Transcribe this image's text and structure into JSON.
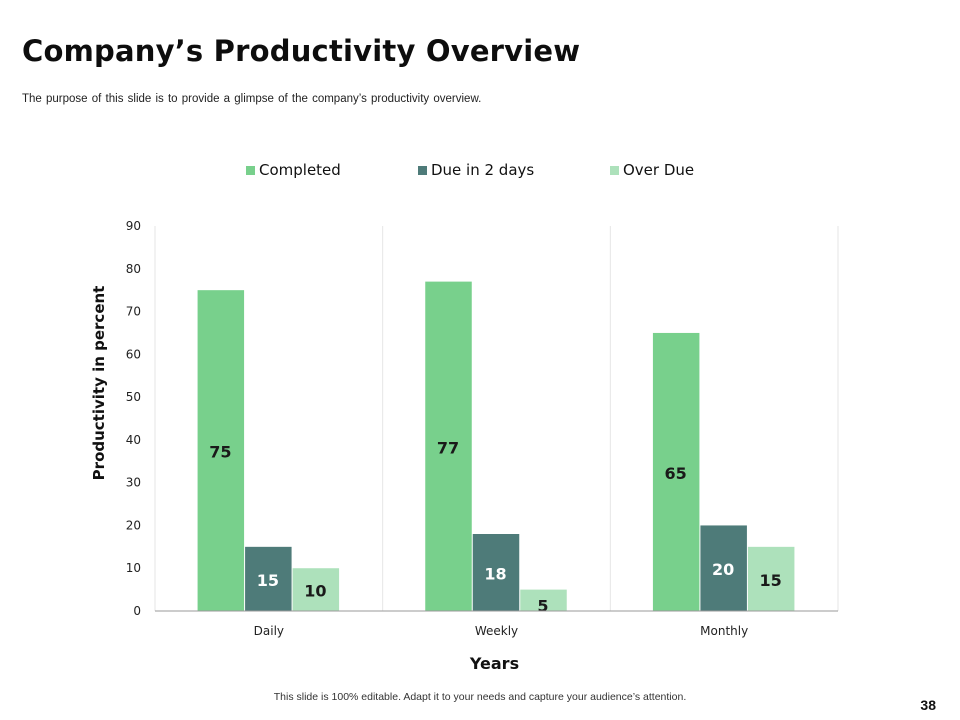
{
  "slide": {
    "title": "Company’s Productivity Overview",
    "subtitle": "The purpose of this slide is to provide a glimpse of the company’s productivity overview.",
    "footer": "This slide is 100% editable. Adapt it to your needs and capture your audience’s attention.",
    "page_number": "38"
  },
  "chart_data": {
    "type": "bar",
    "categories": [
      "Daily",
      "Weekly",
      "Monthly"
    ],
    "series": [
      {
        "name": "Completed",
        "values": [
          75,
          77,
          65
        ],
        "color": "#78d08c"
      },
      {
        "name": "Due in 2 days",
        "values": [
          15,
          18,
          20
        ],
        "color": "#4e7b79"
      },
      {
        "name": "Over Due",
        "values": [
          10,
          5,
          15
        ],
        "color": "#ade1bb"
      }
    ],
    "xlabel": "Years",
    "ylabel": "Productivity in percent",
    "ylim": [
      0,
      90
    ],
    "yticks": [
      0,
      10,
      20,
      30,
      40,
      50,
      60,
      70,
      80,
      90
    ],
    "grid": "vertical category separators only",
    "legend_position": "top",
    "data_labels": true
  }
}
